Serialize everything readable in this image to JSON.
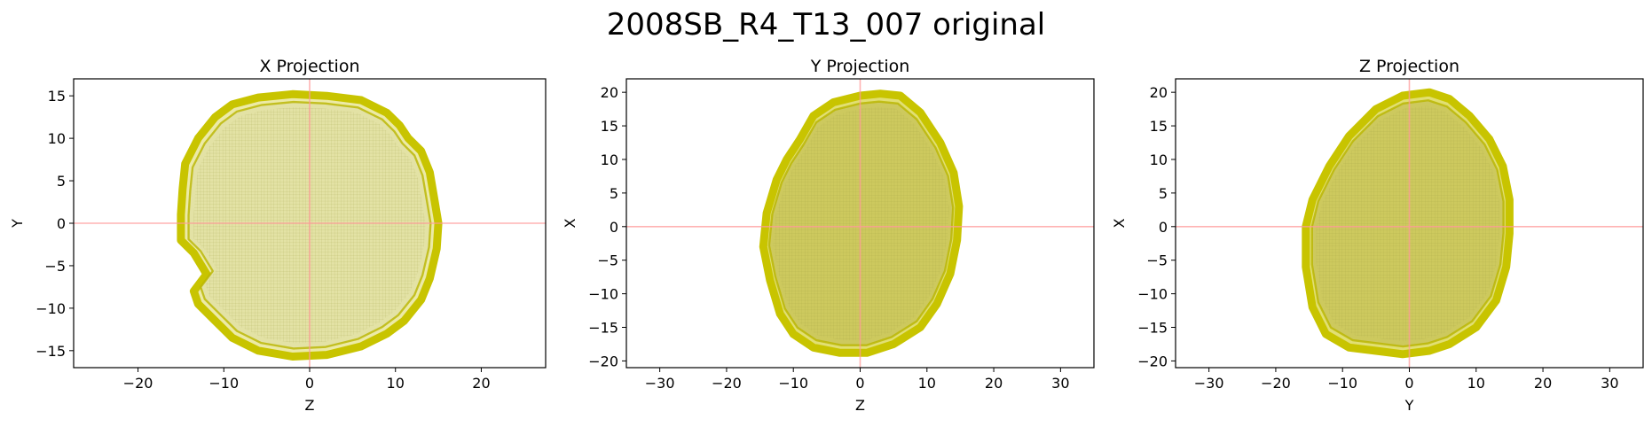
{
  "figure": {
    "title": "2008SB_R4_T13_007 original",
    "shape_color": "#c8c400",
    "axis_line_color": "#ff9a9a",
    "grid_color": "#9a9a40"
  },
  "chart_data": [
    {
      "type": "scatter",
      "title": "X Projection",
      "xlabel": "Z",
      "ylabel": "Y",
      "xlim": [
        -27.5,
        27.5
      ],
      "ylim": [
        -17,
        17
      ],
      "xticks": [
        -20,
        -10,
        0,
        10,
        20
      ],
      "yticks": [
        -15,
        -10,
        -5,
        0,
        5,
        10,
        15
      ],
      "crosshair_at": [
        0,
        0
      ],
      "fill_style": "pale",
      "outline": [
        [
          -14.5,
          7
        ],
        [
          -13,
          10
        ],
        [
          -11,
          12.5
        ],
        [
          -9,
          14
        ],
        [
          -6,
          14.8
        ],
        [
          -2,
          15.2
        ],
        [
          2,
          15
        ],
        [
          6,
          14.5
        ],
        [
          9,
          13
        ],
        [
          10.5,
          11.5
        ],
        [
          11.5,
          10
        ],
        [
          13,
          8.5
        ],
        [
          14,
          6
        ],
        [
          14.5,
          3
        ],
        [
          15,
          0
        ],
        [
          14.8,
          -3
        ],
        [
          14,
          -6.5
        ],
        [
          13,
          -9
        ],
        [
          11,
          -11.5
        ],
        [
          9,
          -13
        ],
        [
          6,
          -14.5
        ],
        [
          2,
          -15.5
        ],
        [
          -2,
          -15.7
        ],
        [
          -6,
          -15
        ],
        [
          -9,
          -13.5
        ],
        [
          -11,
          -11.5
        ],
        [
          -13,
          -9.5
        ],
        [
          -13.5,
          -8
        ],
        [
          -12,
          -6
        ],
        [
          -13.5,
          -3.5
        ],
        [
          -15,
          -2
        ],
        [
          -15,
          1
        ],
        [
          -14.8,
          4
        ]
      ]
    },
    {
      "type": "scatter",
      "title": "Y Projection",
      "xlabel": "Z",
      "ylabel": "X",
      "xlim": [
        -35,
        35
      ],
      "ylim": [
        -21,
        22
      ],
      "xticks": [
        -30,
        -20,
        -10,
        0,
        10,
        20,
        30
      ],
      "yticks": [
        -20,
        -15,
        -10,
        -5,
        0,
        5,
        10,
        15,
        20
      ],
      "crosshair_at": [
        0,
        0
      ],
      "fill_style": "dense",
      "outline": [
        [
          -9,
          13
        ],
        [
          -7,
          16.5
        ],
        [
          -4,
          18.5
        ],
        [
          0,
          19.5
        ],
        [
          3,
          19.8
        ],
        [
          6,
          19.5
        ],
        [
          9,
          17
        ],
        [
          12,
          12.5
        ],
        [
          14,
          8
        ],
        [
          14.8,
          3
        ],
        [
          14.5,
          -2
        ],
        [
          13.5,
          -7
        ],
        [
          11.5,
          -11.5
        ],
        [
          9,
          -15
        ],
        [
          5,
          -17.5
        ],
        [
          1,
          -18.8
        ],
        [
          -3,
          -18.8
        ],
        [
          -7,
          -18
        ],
        [
          -10,
          -16
        ],
        [
          -12,
          -13
        ],
        [
          -13.5,
          -8
        ],
        [
          -14.5,
          -3
        ],
        [
          -14,
          2
        ],
        [
          -12.5,
          7
        ],
        [
          -11,
          10
        ]
      ]
    },
    {
      "type": "scatter",
      "title": "Z Projection",
      "xlabel": "Y",
      "ylabel": "X",
      "xlim": [
        -35,
        35
      ],
      "ylim": [
        -21,
        22
      ],
      "xticks": [
        -30,
        -20,
        -10,
        0,
        10,
        20,
        30
      ],
      "yticks": [
        -20,
        -15,
        -10,
        -5,
        0,
        5,
        10,
        15,
        20
      ],
      "crosshair_at": [
        0,
        0
      ],
      "fill_style": "dense",
      "outline": [
        [
          -12,
          9
        ],
        [
          -9,
          13.5
        ],
        [
          -5,
          17.5
        ],
        [
          -1,
          19.5
        ],
        [
          3,
          20
        ],
        [
          6,
          19
        ],
        [
          9,
          16.5
        ],
        [
          12,
          13
        ],
        [
          14,
          9
        ],
        [
          15,
          4
        ],
        [
          15,
          -1
        ],
        [
          14.5,
          -6
        ],
        [
          13,
          -11
        ],
        [
          10,
          -15
        ],
        [
          6,
          -17.5
        ],
        [
          3,
          -18.5
        ],
        [
          -1,
          -19
        ],
        [
          -5,
          -18.5
        ],
        [
          -9,
          -18
        ],
        [
          -12.5,
          -16
        ],
        [
          -14.5,
          -12
        ],
        [
          -15.5,
          -6
        ],
        [
          -15.5,
          0
        ],
        [
          -14.5,
          4
        ]
      ]
    }
  ]
}
